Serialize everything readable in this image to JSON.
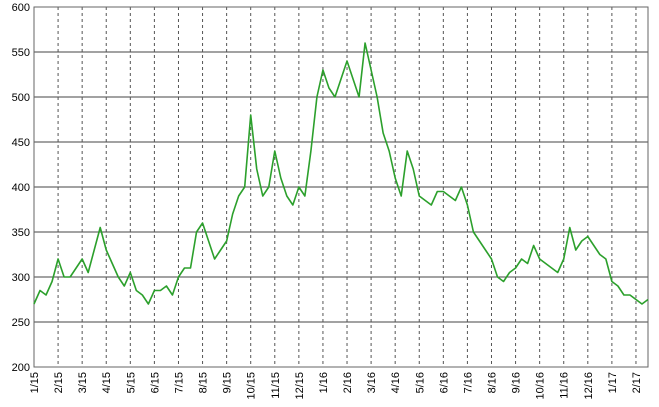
{
  "chart_data": {
    "type": "line",
    "categories": [
      "1/15",
      null,
      null,
      null,
      "2/15",
      null,
      null,
      null,
      "3/15",
      null,
      null,
      null,
      "4/15",
      null,
      null,
      null,
      "5/15",
      null,
      null,
      null,
      "6/15",
      null,
      null,
      null,
      "7/15",
      null,
      null,
      null,
      "8/15",
      null,
      null,
      null,
      "9/15",
      null,
      null,
      null,
      "10/15",
      null,
      null,
      null,
      "11/15",
      null,
      null,
      null,
      "12/15",
      null,
      null,
      null,
      "1/16",
      null,
      null,
      null,
      "2/16",
      null,
      null,
      null,
      "3/16",
      null,
      null,
      null,
      "4/16",
      null,
      null,
      null,
      "5/16",
      null,
      null,
      null,
      "6/16",
      null,
      null,
      null,
      "7/16",
      null,
      null,
      null,
      "8/16",
      null,
      null,
      null,
      "9/16",
      null,
      null,
      null,
      "10/16",
      null,
      null,
      null,
      "11/16",
      null,
      null,
      null,
      "12/16",
      null,
      null,
      null,
      "1/17",
      null,
      null,
      null,
      "2/17",
      null,
      null
    ],
    "values": [
      270,
      285,
      280,
      295,
      320,
      300,
      300,
      310,
      320,
      305,
      330,
      355,
      330,
      315,
      300,
      290,
      305,
      285,
      280,
      270,
      285,
      285,
      290,
      280,
      300,
      310,
      310,
      350,
      360,
      340,
      320,
      330,
      340,
      370,
      390,
      400,
      480,
      420,
      390,
      400,
      440,
      410,
      390,
      380,
      400,
      390,
      440,
      500,
      530,
      510,
      500,
      520,
      540,
      520,
      500,
      560,
      530,
      500,
      460,
      440,
      410,
      390,
      440,
      420,
      390,
      385,
      380,
      395,
      395,
      390,
      385,
      400,
      380,
      350,
      340,
      330,
      320,
      300,
      295,
      305,
      310,
      320,
      315,
      335,
      320,
      315,
      310,
      305,
      320,
      355,
      330,
      340,
      345,
      335,
      325,
      320,
      295,
      290,
      280,
      280,
      275,
      270,
      275
    ],
    "color": "#2ca02c",
    "ylim": [
      200,
      600
    ],
    "yticks": [
      200,
      250,
      300,
      350,
      400,
      450,
      500,
      550,
      600
    ],
    "grid": true
  }
}
